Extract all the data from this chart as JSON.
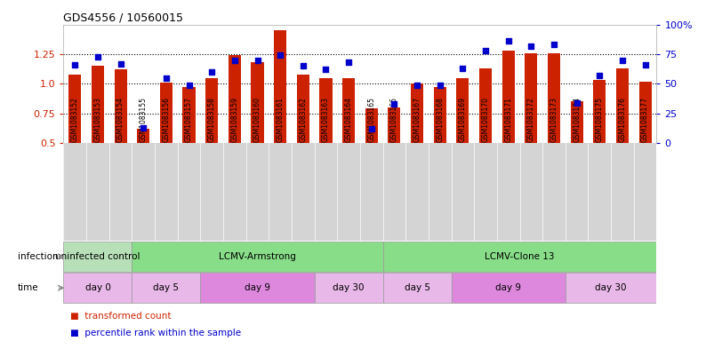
{
  "title": "GDS4556 / 10560015",
  "samples": [
    "GSM1083152",
    "GSM1083153",
    "GSM1083154",
    "GSM1083155",
    "GSM1083156",
    "GSM1083157",
    "GSM1083158",
    "GSM1083159",
    "GSM1083160",
    "GSM1083161",
    "GSM1083162",
    "GSM1083163",
    "GSM1083164",
    "GSM1083165",
    "GSM1083166",
    "GSM1083167",
    "GSM1083168",
    "GSM1083169",
    "GSM1083170",
    "GSM1083171",
    "GSM1083172",
    "GSM1083173",
    "GSM1083174",
    "GSM1083175",
    "GSM1083176",
    "GSM1083177"
  ],
  "bar_values": [
    1.08,
    1.15,
    1.12,
    0.62,
    1.01,
    0.97,
    1.05,
    1.24,
    1.18,
    1.45,
    1.08,
    1.05,
    1.05,
    0.79,
    0.8,
    1.0,
    0.97,
    1.05,
    1.13,
    1.28,
    1.26,
    1.26,
    0.85,
    1.03,
    1.13,
    1.02
  ],
  "percentile_values": [
    66,
    73,
    67,
    13,
    55,
    49,
    60,
    70,
    70,
    74,
    65,
    62,
    68,
    12,
    33,
    49,
    49,
    63,
    78,
    86,
    82,
    83,
    34,
    57,
    70,
    66
  ],
  "bar_color": "#cc2200",
  "dot_color": "#0000cc",
  "bar_bottom": 0.5,
  "ylim_left": [
    0.5,
    1.5
  ],
  "ylim_right": [
    0,
    100
  ],
  "yticks_left": [
    0.5,
    0.75,
    1.0,
    1.25
  ],
  "yticks_right": [
    0,
    25,
    50,
    75,
    100
  ],
  "ytick_labels_right": [
    "0",
    "25",
    "50",
    "75",
    "100%"
  ],
  "hlines": [
    0.75,
    1.0,
    1.25
  ],
  "infection_groups": [
    {
      "label": "uninfected control",
      "start": 0,
      "end": 3,
      "color": "#b8e0b8"
    },
    {
      "label": "LCMV-Armstrong",
      "start": 3,
      "end": 14,
      "color": "#88dd88"
    },
    {
      "label": "LCMV-Clone 13",
      "start": 14,
      "end": 26,
      "color": "#88dd88"
    }
  ],
  "time_groups": [
    {
      "label": "day 0",
      "start": 0,
      "end": 3,
      "color": "#e8b8e8"
    },
    {
      "label": "day 5",
      "start": 3,
      "end": 6,
      "color": "#e8b8e8"
    },
    {
      "label": "day 9",
      "start": 6,
      "end": 11,
      "color": "#dd88dd"
    },
    {
      "label": "day 30",
      "start": 11,
      "end": 14,
      "color": "#e8b8e8"
    },
    {
      "label": "day 5",
      "start": 14,
      "end": 17,
      "color": "#e8b8e8"
    },
    {
      "label": "day 9",
      "start": 17,
      "end": 22,
      "color": "#dd88dd"
    },
    {
      "label": "day 30",
      "start": 22,
      "end": 26,
      "color": "#e8b8e8"
    }
  ],
  "legend_bar_label": "transformed count",
  "legend_dot_label": "percentile rank within the sample",
  "infection_row_label": "infection",
  "time_row_label": "time",
  "bg_color": "#ffffff",
  "xtick_bg_color": "#d4d4d4",
  "row_label_color": "#888888"
}
